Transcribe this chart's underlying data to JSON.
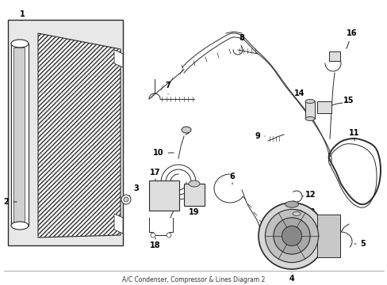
{
  "bg_color": "#ffffff",
  "line_color": "#2a2a2a",
  "fig_width": 4.89,
  "fig_height": 3.6,
  "dpi": 100,
  "bottom_text": "A/C Condenser, Compressor & Lines Diagram 2"
}
